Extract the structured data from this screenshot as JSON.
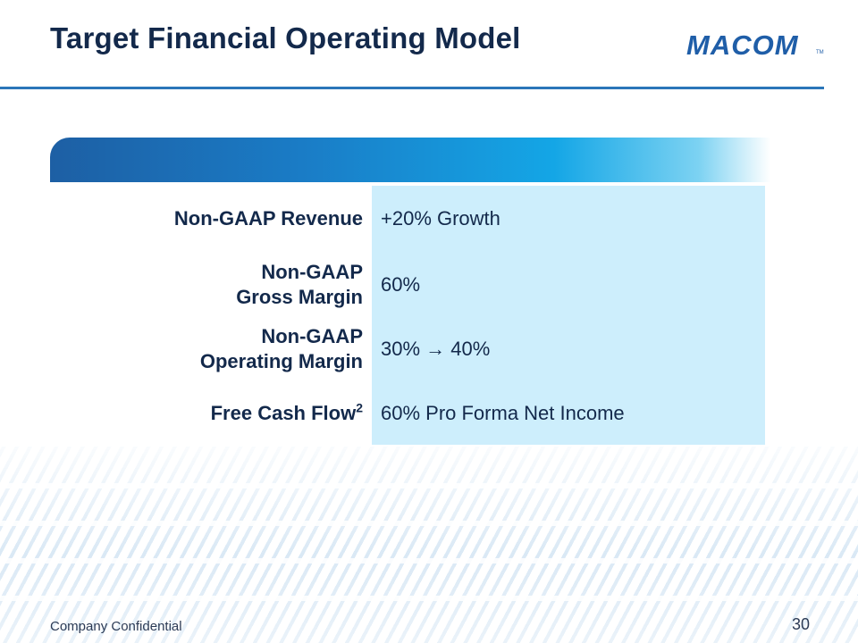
{
  "header": {
    "title": "Target Financial Operating Model",
    "logo_text": "MACOM",
    "logo_tm": "TM"
  },
  "colors": {
    "title": "#13294b",
    "rule": "#2b76b9",
    "value_panel": "#cdeefc",
    "logo_blue": "#1f5ea8"
  },
  "table": {
    "rows": [
      {
        "label": "Non-GAAP Revenue",
        "value": "+20% Growth"
      },
      {
        "label_line1": "Non-GAAP",
        "label_line2": "Gross Margin",
        "value": "60%"
      },
      {
        "label_line1": "Non-GAAP",
        "label_line2": "Operating Margin",
        "value": "30% → 40%"
      },
      {
        "label": "Free Cash Flow",
        "label_sup": "2",
        "value": "60% Pro Forma Net Income"
      }
    ]
  },
  "footer": {
    "confidential": "Company Confidential",
    "page_number": "30"
  }
}
